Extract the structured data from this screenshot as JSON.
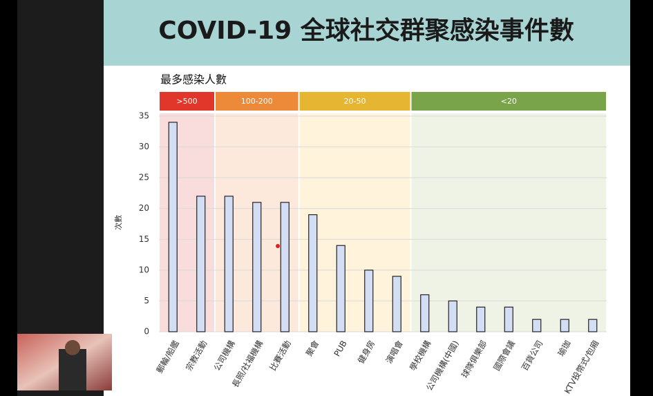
{
  "chart_data": {
    "type": "bar",
    "title": "COVID-19 全球社交群聚感染事件數",
    "subtitle": "最多感染人數",
    "y_label": "次數",
    "categories": [
      "郵輪/船艦",
      "宗教活動",
      "公司機構",
      "長照/社福機構",
      "比賽活動",
      "聚會",
      "PUB",
      "健身房",
      "演唱會",
      "學校機構",
      "公司機構(中國)",
      "球隊俱樂部",
      "國際會議",
      "百貨公司",
      "瑜珈",
      "KTV投幣式/包廂"
    ],
    "values": [
      34,
      22,
      22,
      21,
      21,
      19,
      14,
      10,
      9,
      6,
      5,
      4,
      4,
      2,
      2,
      2
    ],
    "color": "#d3ddf4",
    "ylim": [
      0,
      35
    ],
    "yticks": [
      0,
      5,
      10,
      15,
      20,
      25,
      30,
      35
    ],
    "grid": true,
    "bands": [
      {
        "label": ">500",
        "color": "#e0372a",
        "shade": "#f9dcdc",
        "first": 0,
        "last": 1
      },
      {
        "label": "100-200",
        "color": "#ec8a3a",
        "shade": "#fde9dc",
        "first": 2,
        "last": 4
      },
      {
        "label": "20-50",
        "color": "#e6b531",
        "shade": "#fff3dc",
        "first": 5,
        "last": 8
      },
      {
        "label": "<20",
        "color": "#7aa44a",
        "shade": "#eef3e6",
        "first": 9,
        "last": 15
      }
    ]
  }
}
